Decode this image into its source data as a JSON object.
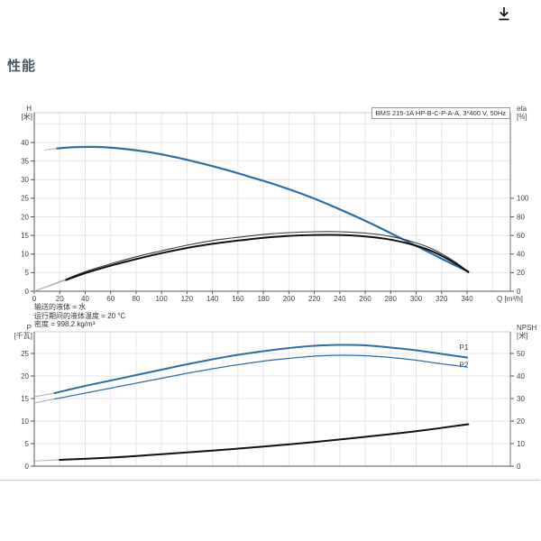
{
  "page": {
    "title": "性能"
  },
  "icons": {
    "download": "arrow-down-to-line"
  },
  "colors": {
    "accent_blue": "#2f6ca5",
    "curve_black": "#1a1a1a",
    "title": "#4c5a66"
  },
  "notes": [
    "输送的液体 = 水",
    "运行期间的液体温度 = 20 °C",
    "密度 = 998.2 kg/m³"
  ],
  "chart_data": [
    {
      "type": "line",
      "title": "BMS 215-1A HP-B-C-P-A-A, 3*400 V, 50Hz",
      "xlabel": "Q [m³/h]",
      "x_range": [
        0,
        374
      ],
      "x_grid_step": 20,
      "x_ticks": [
        0,
        20,
        40,
        60,
        80,
        100,
        120,
        140,
        160,
        180,
        200,
        220,
        240,
        260,
        280,
        300,
        320,
        340
      ],
      "grid": true,
      "left_axis": {
        "label_top": "H",
        "label_unit": "[米]",
        "range": [
          0,
          48
        ],
        "ticks": [
          0,
          5,
          10,
          15,
          20,
          25,
          30,
          35,
          40
        ]
      },
      "right_axis": {
        "label_top": "eta",
        "label_unit": "[%]",
        "range": [
          0,
          192
        ],
        "ticks": [
          0,
          20,
          40,
          60,
          80,
          100
        ]
      },
      "series": [
        {
          "name": "H",
          "axis": "left",
          "color": "#2f6ca5",
          "width": 2.2,
          "lead": [
            [
              8,
              38.0
            ],
            [
              18,
              38.4
            ]
          ],
          "points": [
            [
              18,
              38.4
            ],
            [
              30,
              38.7
            ],
            [
              50,
              38.8
            ],
            [
              70,
              38.3
            ],
            [
              90,
              37.4
            ],
            [
              110,
              36.1
            ],
            [
              130,
              34.5
            ],
            [
              150,
              32.7
            ],
            [
              170,
              30.7
            ],
            [
              190,
              28.6
            ],
            [
              210,
              26.2
            ],
            [
              230,
              23.5
            ],
            [
              250,
              20.5
            ],
            [
              270,
              17.3
            ],
            [
              290,
              13.9
            ],
            [
              310,
              10.5
            ],
            [
              325,
              7.9
            ],
            [
              341,
              5.3
            ]
          ]
        },
        {
          "name": "eta-upper",
          "axis": "right",
          "color": "#3a3a3a",
          "width": 1.1,
          "lead": [
            [
              0,
              0
            ],
            [
              25,
              13
            ]
          ],
          "points": [
            [
              25,
              13
            ],
            [
              40,
              21
            ],
            [
              60,
              29.5
            ],
            [
              80,
              37
            ],
            [
              100,
              43.5
            ],
            [
              120,
              49.5
            ],
            [
              140,
              54.5
            ],
            [
              160,
              58
            ],
            [
              180,
              61
            ],
            [
              200,
              63
            ],
            [
              220,
              64
            ],
            [
              240,
              64
            ],
            [
              260,
              62.5
            ],
            [
              280,
              59
            ],
            [
              300,
              52
            ],
            [
              315,
              44
            ],
            [
              330,
              32
            ],
            [
              341,
              21
            ]
          ]
        },
        {
          "name": "eta-lower",
          "axis": "right",
          "color": "#111111",
          "width": 2,
          "lead": [
            [
              0,
              0
            ],
            [
              25,
              12
            ]
          ],
          "points": [
            [
              25,
              12
            ],
            [
              40,
              19.5
            ],
            [
              60,
              27.5
            ],
            [
              80,
              34.5
            ],
            [
              100,
              41
            ],
            [
              120,
              46.5
            ],
            [
              140,
              51
            ],
            [
              160,
              54.5
            ],
            [
              180,
              57.5
            ],
            [
              200,
              59.5
            ],
            [
              220,
              60.5
            ],
            [
              240,
              60.5
            ],
            [
              260,
              59
            ],
            [
              280,
              55.5
            ],
            [
              300,
              49
            ],
            [
              315,
              41.5
            ],
            [
              330,
              30.5
            ],
            [
              341,
              20.5
            ]
          ]
        }
      ]
    },
    {
      "type": "line",
      "title": "",
      "xlabel": "",
      "x_range": [
        0,
        374
      ],
      "x_grid_step": 20,
      "x_ticks": [],
      "grid": true,
      "left_axis": {
        "label_top": "P",
        "label_unit": "[千瓦]",
        "range": [
          0,
          29.8
        ],
        "ticks": [
          0,
          5,
          10,
          15,
          20,
          25
        ]
      },
      "right_axis": {
        "label_top": "NPSH",
        "label_unit": "[米]",
        "range": [
          0,
          59.6
        ],
        "ticks": [
          0,
          10,
          20,
          30,
          40,
          50
        ]
      },
      "series": [
        {
          "name": "P1",
          "axis": "left",
          "color": "#2f6ca5",
          "width": 2,
          "label": {
            "text": "P1",
            "at": [
              334,
              25.8
            ]
          },
          "lead": [
            [
              0,
              15.4
            ],
            [
              16,
              16.2
            ]
          ],
          "points": [
            [
              16,
              16.2
            ],
            [
              40,
              17.8
            ],
            [
              60,
              19.0
            ],
            [
              80,
              20.2
            ],
            [
              100,
              21.4
            ],
            [
              120,
              22.6
            ],
            [
              140,
              23.7
            ],
            [
              160,
              24.7
            ],
            [
              180,
              25.5
            ],
            [
              200,
              26.2
            ],
            [
              220,
              26.7
            ],
            [
              240,
              26.9
            ],
            [
              260,
              26.8
            ],
            [
              280,
              26.3
            ],
            [
              300,
              25.7
            ],
            [
              320,
              24.9
            ],
            [
              340,
              24.1
            ]
          ]
        },
        {
          "name": "P2",
          "axis": "left",
          "color": "#2f6ca5",
          "width": 1.2,
          "label": {
            "text": "P2",
            "at": [
              334,
              21.9
            ]
          },
          "lead": [
            [
              0,
              14.0
            ],
            [
              16,
              14.9
            ]
          ],
          "points": [
            [
              16,
              14.9
            ],
            [
              40,
              16.2
            ],
            [
              60,
              17.3
            ],
            [
              80,
              18.4
            ],
            [
              100,
              19.5
            ],
            [
              120,
              20.6
            ],
            [
              140,
              21.6
            ],
            [
              160,
              22.5
            ],
            [
              180,
              23.3
            ],
            [
              200,
              23.9
            ],
            [
              220,
              24.4
            ],
            [
              240,
              24.6
            ],
            [
              260,
              24.5
            ],
            [
              280,
              24.1
            ],
            [
              300,
              23.5
            ],
            [
              320,
              22.7
            ],
            [
              340,
              22.0
            ]
          ]
        },
        {
          "name": "NPSH",
          "axis": "right",
          "color": "#111111",
          "width": 2,
          "lead": [
            [
              0,
              2.3
            ],
            [
              20,
              2.8
            ]
          ],
          "points": [
            [
              20,
              2.8
            ],
            [
              60,
              3.8
            ],
            [
              100,
              5.3
            ],
            [
              140,
              6.9
            ],
            [
              180,
              8.7
            ],
            [
              220,
              10.7
            ],
            [
              260,
              13.0
            ],
            [
              300,
              15.5
            ],
            [
              341,
              18.6
            ]
          ]
        }
      ]
    }
  ]
}
